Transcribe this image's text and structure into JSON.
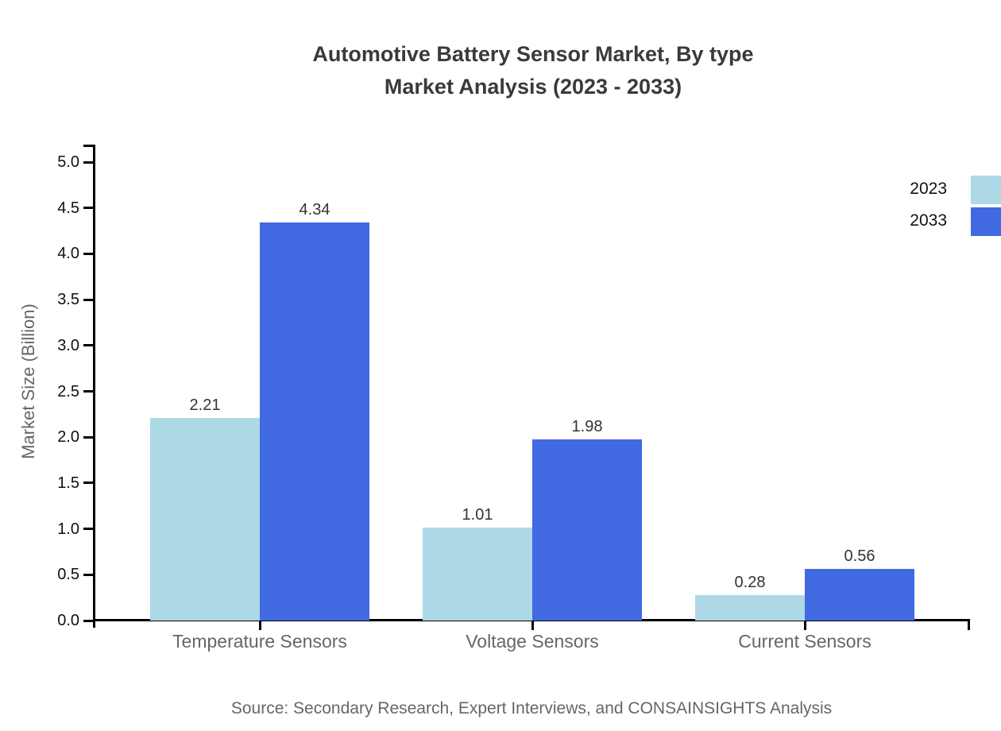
{
  "title": {
    "line1": "Automotive Battery Sensor Market, By type",
    "line2": "Market Analysis (2023 - 2033)"
  },
  "source_note": "Source: Secondary Research, Expert Interviews, and CONSAINSIGHTS Analysis",
  "legend": {
    "items": [
      {
        "label": "2023",
        "color": "#ADD8E6"
      },
      {
        "label": "2033",
        "color": "#4169E1"
      }
    ]
  },
  "chart_data": {
    "type": "bar",
    "title": "Automotive Battery Sensor Market, By type Market Analysis (2023 - 2033)",
    "categories": [
      "Temperature Sensors",
      "Voltage Sensors",
      "Current Sensors"
    ],
    "series": [
      {
        "name": "2023",
        "color": "#ADD8E6",
        "values": [
          2.21,
          1.01,
          0.28
        ]
      },
      {
        "name": "2033",
        "color": "#4169E1",
        "values": [
          4.34,
          1.98,
          0.56
        ]
      }
    ],
    "xlabel": "",
    "ylabel": "Market Size (Billion)",
    "ylim": [
      0,
      5
    ],
    "ytick_step": 0.5,
    "ytick_format": "one-decimal",
    "value_labels": true,
    "value_label_format": "two-decimal",
    "grid": false,
    "legend_position": "top-right",
    "axis_color": "#000000",
    "title_color": "#3a3a3a",
    "tick_label_color": "#111111",
    "category_label_color": "#666666",
    "value_label_color": "#333333",
    "source_color": "#666666"
  }
}
